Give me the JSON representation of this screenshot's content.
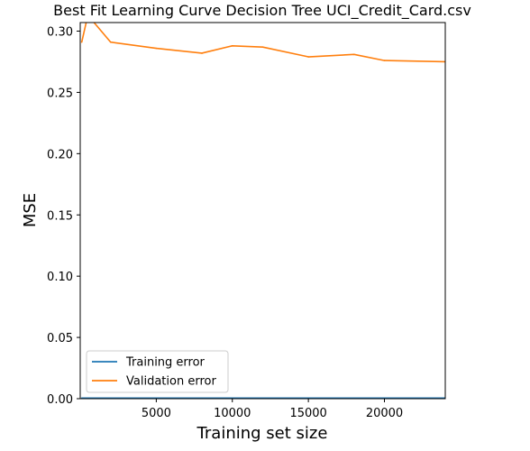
{
  "chart_data": {
    "type": "line",
    "title": "Best Fit Learning Curve Decision Tree UCI_Credit_Card.csv",
    "xlabel": "Training set size",
    "ylabel": "MSE",
    "xlim": [
      0,
      24000
    ],
    "ylim": [
      0,
      0.307
    ],
    "xticks": [
      5000,
      10000,
      15000,
      20000
    ],
    "xtick_labels": [
      "5000",
      "10000",
      "15000",
      "20000"
    ],
    "yticks": [
      0.0,
      0.05,
      0.1,
      0.15,
      0.2,
      0.25,
      0.3
    ],
    "ytick_labels": [
      "0.00",
      "0.05",
      "0.10",
      "0.15",
      "0.20",
      "0.25",
      "0.30"
    ],
    "grid": false,
    "legend_position": "lower-left",
    "series": [
      {
        "name": "Training error",
        "color": "#1f77b4",
        "x": [
          100,
          500,
          2000,
          5000,
          8000,
          10000,
          12000,
          15000,
          18000,
          20000,
          24000
        ],
        "y": [
          0.0005,
          0.0005,
          0.0005,
          0.0005,
          0.0005,
          0.0005,
          0.0005,
          0.0005,
          0.0005,
          0.0005,
          0.0005
        ]
      },
      {
        "name": "Validation error",
        "color": "#ff7f0e",
        "x": [
          100,
          500,
          2000,
          5000,
          8000,
          10000,
          12000,
          15000,
          18000,
          20000,
          24000
        ],
        "y": [
          0.291,
          0.313,
          0.291,
          0.286,
          0.282,
          0.288,
          0.287,
          0.279,
          0.281,
          0.276,
          0.275
        ]
      }
    ]
  }
}
